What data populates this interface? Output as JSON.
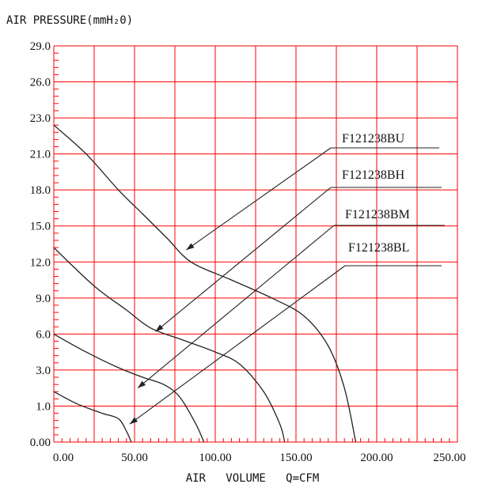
{
  "chart_data": {
    "type": "line",
    "title": "AIR PRESSURE(mmH₂0)",
    "xlabel": "AIR   VOLUME   Q=CFM",
    "ylabel": "",
    "xlim": [
      0,
      250
    ],
    "ylim_labels": [
      "0.00",
      "1.0",
      "3.0",
      "6.0",
      "9.0",
      "12.0",
      "15.0",
      "18.0",
      "21.0",
      "23.0",
      "26.0",
      "29.0"
    ],
    "x_tick_labels": [
      "0.00",
      "50.00",
      "100.00",
      "150.00",
      "200.00",
      "250.00"
    ],
    "grid": true,
    "grid_color": "#ff0000",
    "series": [
      {
        "name": "F121238BU",
        "points": [
          [
            0,
            22.6
          ],
          [
            20,
            21.0
          ],
          [
            40,
            18.0
          ],
          [
            55,
            16.0
          ],
          [
            70,
            14.0
          ],
          [
            85,
            12.0
          ],
          [
            110,
            10.5
          ],
          [
            135,
            9.0
          ],
          [
            155,
            7.5
          ],
          [
            170,
            5.0
          ],
          [
            180,
            2.0
          ],
          [
            187,
            0.0
          ]
        ]
      },
      {
        "name": "F121238BH",
        "points": [
          [
            0,
            13.2
          ],
          [
            25,
            10.0
          ],
          [
            45,
            8.0
          ],
          [
            60,
            6.5
          ],
          [
            80,
            5.5
          ],
          [
            100,
            4.5
          ],
          [
            115,
            3.5
          ],
          [
            130,
            1.8
          ],
          [
            140,
            0.5
          ],
          [
            143,
            0.0
          ]
        ]
      },
      {
        "name": "F121238BM",
        "points": [
          [
            0,
            6.0
          ],
          [
            20,
            4.5
          ],
          [
            40,
            3.2
          ],
          [
            55,
            2.6
          ],
          [
            68,
            2.2
          ],
          [
            78,
            1.5
          ],
          [
            88,
            0.5
          ],
          [
            93,
            0.0
          ]
        ]
      },
      {
        "name": "F121238BL",
        "points": [
          [
            0,
            1.8
          ],
          [
            15,
            1.1
          ],
          [
            30,
            0.8
          ],
          [
            40,
            0.65
          ],
          [
            45,
            0.3
          ],
          [
            48,
            0.0
          ]
        ]
      }
    ],
    "annotations": [
      {
        "label": "F121238BU",
        "target": [
          82,
          13.0
        ]
      },
      {
        "label": "F121238BH",
        "target": [
          63,
          6.2
        ]
      },
      {
        "label": "F121238BM",
        "target": [
          52,
          2.0
        ]
      },
      {
        "label": "F121238BL",
        "target": [
          47,
          0.5
        ]
      }
    ]
  }
}
